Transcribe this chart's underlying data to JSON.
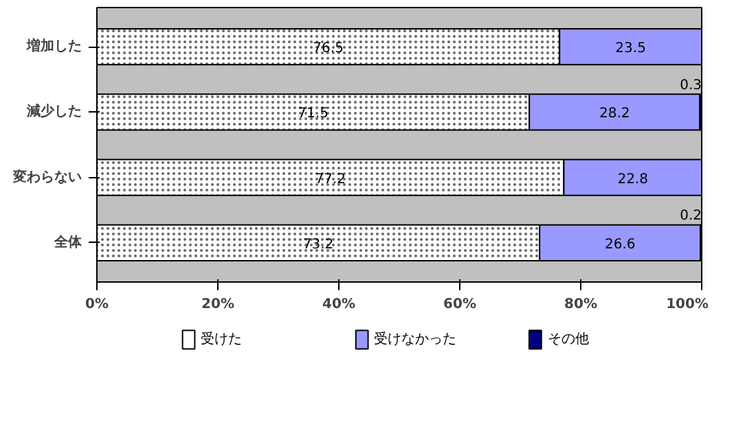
{
  "chart_data": {
    "type": "bar",
    "orientation": "horizontal",
    "stacked": true,
    "categories": [
      "増加した",
      "減少した",
      "変わらない",
      "全体"
    ],
    "series": [
      {
        "name": "受けた",
        "color": "#ffffff",
        "values": [
          76.5,
          71.5,
          77.2,
          73.2
        ],
        "value_labels": [
          "76.5",
          "71.5",
          "77.2",
          "73.2"
        ]
      },
      {
        "name": "受けなかった",
        "color": "#9999ff",
        "values": [
          23.5,
          28.2,
          22.8,
          26.6
        ],
        "value_labels": [
          "23.5",
          "28.2",
          "22.8",
          "26.6"
        ]
      },
      {
        "name": "その他",
        "color": "#000080",
        "values": [
          0,
          0.3,
          0,
          0.2
        ],
        "value_labels": [
          null,
          "0.3",
          null,
          "0.2"
        ]
      }
    ],
    "xlim": [
      0,
      100
    ],
    "xticks": [
      {
        "value": 0,
        "label": "0%"
      },
      {
        "value": 20,
        "label": "20%"
      },
      {
        "value": 40,
        "label": "40%"
      },
      {
        "value": 60,
        "label": "60%"
      },
      {
        "value": 80,
        "label": "80%"
      },
      {
        "value": 100,
        "label": "100%"
      }
    ],
    "grid": false,
    "legend": "bottom"
  }
}
